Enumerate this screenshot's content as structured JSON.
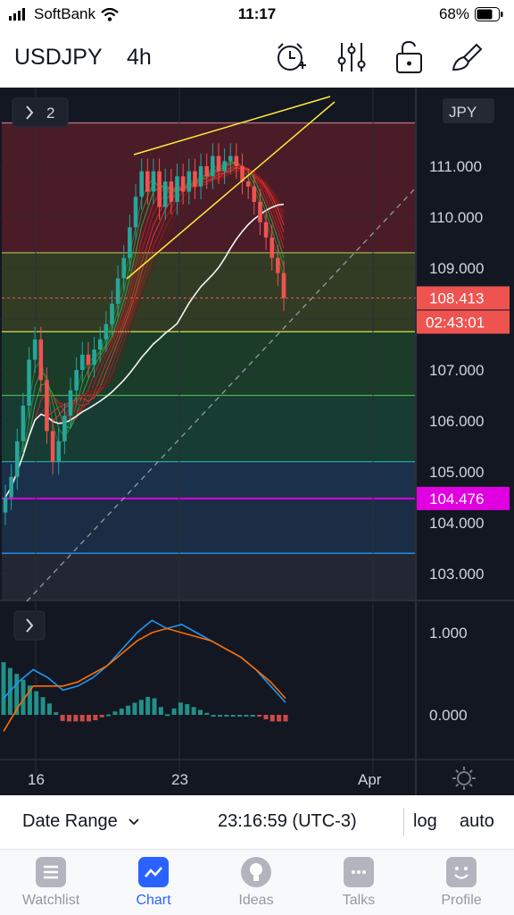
{
  "status_bar": {
    "carrier": "SoftBank",
    "time": "11:17",
    "battery": "68%"
  },
  "toolbar": {
    "symbol": "USDJPY",
    "interval": "4h",
    "icons": [
      "alarm-add-icon",
      "indicators-icon",
      "lock-icon",
      "drawing-icon"
    ]
  },
  "chart": {
    "collapse_button": "2",
    "currency_label": "JPY",
    "price_axis": [
      "111.000",
      "110.000",
      "109.000",
      "108.000",
      "107.000",
      "106.000",
      "105.000",
      "104.000",
      "103.000"
    ],
    "current_price": "108.413",
    "countdown": "02:43:01",
    "level_price": "104.476",
    "time_axis": [
      "16",
      "23",
      "Apr"
    ],
    "macd_axis": [
      "1.000",
      "0.000"
    ],
    "colors": {
      "background": "#131722",
      "up": "#26a69a",
      "down": "#ef5350",
      "price_badge": "#ef5350",
      "level_badge": "#e000e0",
      "trendline": "#ffeb3b"
    }
  },
  "chart_data": {
    "type": "candlestick",
    "symbol": "USDJPY",
    "interval": "4h",
    "ylim": [
      102.6,
      112.0
    ],
    "last_price": 108.413,
    "horizontal_levels": [
      111.85,
      109.3,
      107.75,
      106.5,
      105.2,
      104.476,
      103.4
    ],
    "close_series": [
      104.5,
      104.9,
      105.6,
      106.3,
      107.2,
      107.6,
      106.8,
      105.8,
      105.2,
      105.6,
      106.1,
      106.6,
      107.0,
      107.3,
      107.1,
      107.4,
      107.6,
      107.9,
      108.3,
      108.8,
      109.2,
      109.8,
      110.4,
      110.9,
      110.5,
      110.9,
      110.2,
      110.7,
      110.3,
      110.8,
      110.5,
      110.9,
      110.6,
      111.0,
      110.8,
      111.2,
      110.9,
      111.1,
      111.2,
      111.0,
      110.7,
      110.6,
      110.3,
      109.9,
      109.6,
      109.2,
      108.9,
      108.413
    ],
    "macd": {
      "axis_ticks": [
        1.0,
        0.0
      ],
      "macd_line": [
        0.2,
        0.4,
        0.55,
        0.45,
        0.3,
        0.35,
        0.45,
        0.6,
        0.8,
        1.0,
        1.15,
        1.05,
        1.1,
        1.0,
        0.9,
        0.8,
        0.7,
        0.55,
        0.35,
        0.15
      ],
      "signal_line": [
        -0.2,
        0.1,
        0.35,
        0.35,
        0.35,
        0.4,
        0.5,
        0.6,
        0.75,
        0.9,
        1.0,
        1.05,
        1.0,
        0.95,
        0.9,
        0.8,
        0.7,
        0.55,
        0.4,
        0.2
      ]
    }
  },
  "bottom_bar": {
    "date_range": "Date Range",
    "clock": "23:16:59 (UTC-3)",
    "log": "log",
    "auto": "auto"
  },
  "tabs": [
    {
      "label": "Watchlist",
      "icon": "watchlist-icon",
      "active": false
    },
    {
      "label": "Chart",
      "icon": "chart-icon",
      "active": true
    },
    {
      "label": "Ideas",
      "icon": "ideas-icon",
      "active": false
    },
    {
      "label": "Talks",
      "icon": "talks-icon",
      "active": false
    },
    {
      "label": "Profile",
      "icon": "profile-icon",
      "active": false
    }
  ]
}
